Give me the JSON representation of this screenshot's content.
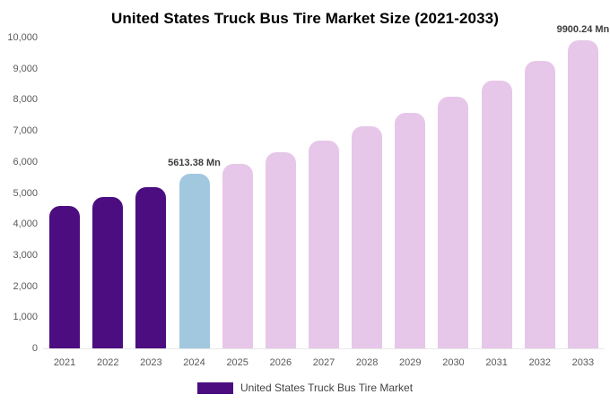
{
  "page": {
    "background": "#ffffff"
  },
  "chart_data": {
    "type": "bar",
    "title": "United States Truck Bus Tire Market Size (2021-2033)",
    "categories": [
      "2021",
      "2022",
      "2023",
      "2024",
      "2025",
      "2026",
      "2027",
      "2028",
      "2029",
      "2030",
      "2031",
      "2032",
      "2033"
    ],
    "values": [
      4580,
      4880,
      5190,
      5613.38,
      5930,
      6310,
      6700,
      7140,
      7590,
      8110,
      8630,
      9240,
      9900.24
    ],
    "bar_roles": [
      "historical",
      "historical",
      "historical",
      "highlight",
      "forecast",
      "forecast",
      "forecast",
      "forecast",
      "forecast",
      "forecast",
      "forecast",
      "forecast",
      "forecast"
    ],
    "colors": {
      "historical": "#4b0d80",
      "highlight": "#a2c8e0",
      "forecast": "#e7c7e9"
    },
    "xlabel": "",
    "ylabel": "",
    "ylim": [
      0,
      10000
    ],
    "ytick_values": [
      0,
      1000,
      2000,
      3000,
      4000,
      5000,
      6000,
      7000,
      8000,
      9000,
      10000
    ],
    "ytick_labels": [
      "0",
      "1,000",
      "2,000",
      "3,000",
      "4,000",
      "5,000",
      "6,000",
      "7,000",
      "8,000",
      "9,000",
      "10,000"
    ],
    "annotations": [
      {
        "index": 3,
        "text": "5613.38 Mn"
      },
      {
        "index": 12,
        "text": "9900.24 Mn"
      }
    ],
    "grid": false,
    "legend_position": "bottom-center",
    "legend": {
      "label": "United States Truck Bus Tire Market",
      "swatch_role": "historical"
    }
  }
}
